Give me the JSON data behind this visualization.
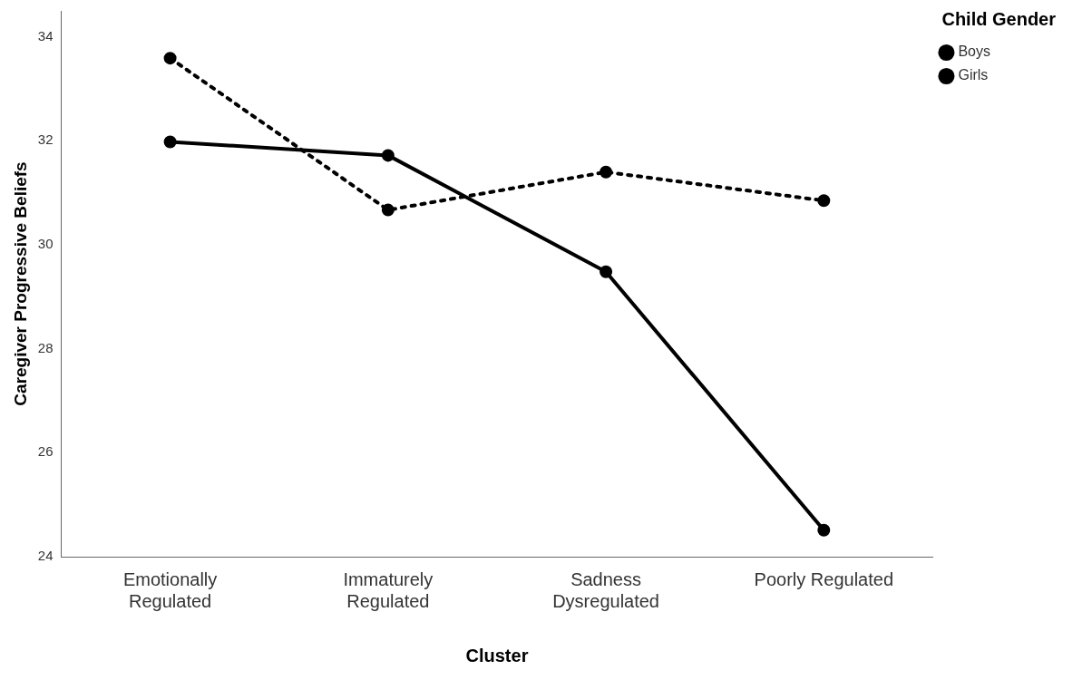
{
  "chart_data": {
    "type": "line",
    "xlabel": "Cluster",
    "ylabel": "Caregiver Progressive Beliefs",
    "legend_title": "Child Gender",
    "categories": [
      "Emotionally\nRegulated",
      "Immaturely\nRegulated",
      "Sadness\nDysregulated",
      "Poorly Regulated"
    ],
    "series": [
      {
        "name": "Boys",
        "color": "#000000",
        "line_style": "solid",
        "values": [
          31.98,
          31.72,
          29.48,
          24.51
        ]
      },
      {
        "name": "Girls",
        "color": "#000000",
        "line_style": "dotted",
        "values": [
          33.59,
          30.67,
          31.4,
          30.85
        ]
      }
    ],
    "ylim": [
      24,
      34.5
    ],
    "yticks": [
      24,
      26,
      28,
      30,
      32,
      34
    ],
    "grid": false,
    "legend": "top right",
    "marker": "circle"
  }
}
